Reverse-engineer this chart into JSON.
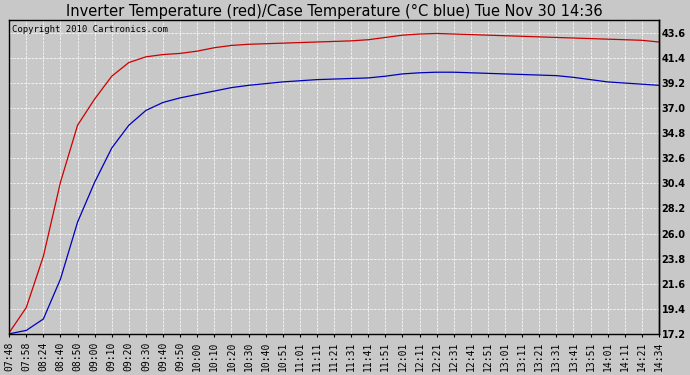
{
  "title": "Inverter Temperature (red)/Case Temperature (°C blue) Tue Nov 30 14:36",
  "copyright": "Copyright 2010 Cartronics.com",
  "y_ticks": [
    17.2,
    19.4,
    21.6,
    23.8,
    26.0,
    28.2,
    30.4,
    32.6,
    34.8,
    37.0,
    39.2,
    41.4,
    43.6
  ],
  "y_min": 17.2,
  "y_max": 44.7,
  "x_labels": [
    "07:48",
    "07:58",
    "08:24",
    "08:40",
    "08:50",
    "09:00",
    "09:10",
    "09:20",
    "09:30",
    "09:40",
    "09:50",
    "10:00",
    "10:10",
    "10:20",
    "10:30",
    "10:40",
    "10:51",
    "11:01",
    "11:11",
    "11:21",
    "11:31",
    "11:41",
    "11:51",
    "12:01",
    "12:11",
    "12:21",
    "12:31",
    "12:41",
    "12:51",
    "13:01",
    "13:11",
    "13:21",
    "13:31",
    "13:41",
    "13:51",
    "14:01",
    "14:11",
    "14:21",
    "14:34"
  ],
  "bg_color": "#c8c8c8",
  "plot_bg_color": "#c8c8c8",
  "grid_color": "#ffffff",
  "line_red_color": "#cc0000",
  "line_blue_color": "#0000bb",
  "title_color": "#000000",
  "copyright_color": "#000000",
  "title_fontsize": 10.5,
  "copyright_fontsize": 6.5,
  "tick_fontsize": 7,
  "red_y": [
    17.3,
    19.5,
    24.0,
    30.5,
    35.5,
    37.8,
    39.8,
    41.0,
    41.5,
    41.7,
    41.8,
    42.0,
    42.3,
    42.5,
    42.6,
    42.65,
    42.7,
    42.75,
    42.8,
    42.85,
    42.9,
    43.0,
    43.2,
    43.4,
    43.5,
    43.55,
    43.5,
    43.45,
    43.4,
    43.35,
    43.3,
    43.25,
    43.2,
    43.15,
    43.1,
    43.05,
    43.0,
    42.95,
    42.8
  ],
  "blue_y": [
    17.2,
    17.5,
    18.5,
    22.0,
    27.0,
    30.5,
    33.5,
    35.5,
    36.8,
    37.5,
    37.9,
    38.2,
    38.5,
    38.8,
    39.0,
    39.15,
    39.3,
    39.4,
    39.5,
    39.55,
    39.6,
    39.65,
    39.8,
    40.0,
    40.1,
    40.15,
    40.15,
    40.1,
    40.05,
    40.0,
    39.95,
    39.9,
    39.85,
    39.7,
    39.5,
    39.3,
    39.2,
    39.1,
    39.0
  ]
}
